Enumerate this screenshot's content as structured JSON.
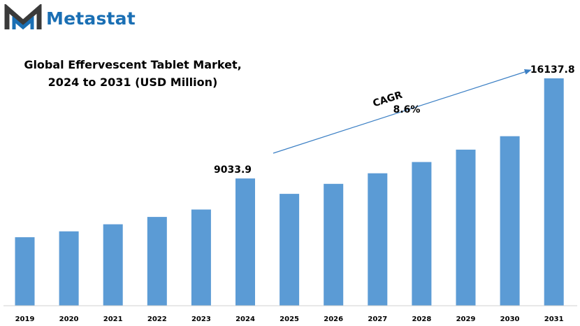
{
  "brand": {
    "name": "Metastat",
    "color": "#1a6fb4",
    "icon": "metastat-m-logo"
  },
  "chart_data": {
    "type": "bar",
    "title_line1": "Global Effervescent Tablet Market,",
    "title_line2": "2024 to 2031 (USD Million)",
    "categories": [
      "2019",
      "2020",
      "2021",
      "2022",
      "2023",
      "2024",
      "2025",
      "2026",
      "2027",
      "2028",
      "2029",
      "2030",
      "2031"
    ],
    "values": [
      4860,
      5280,
      5780,
      6300,
      6830,
      9033.9,
      7940,
      8650,
      9400,
      10200,
      11080,
      12030,
      16137.8
    ],
    "data_labels": [
      {
        "category": "2024",
        "text": "9033.9"
      },
      {
        "category": "2031",
        "text": "16137.8"
      }
    ],
    "annotation": {
      "label": "CAGR",
      "value": "8.6%",
      "from": "2024",
      "to": "2031"
    },
    "bar_color": "#5b9bd5",
    "arrow_color": "#3b7fc4",
    "ylim": [
      0,
      16137.8
    ],
    "grid": false,
    "legend": "none"
  }
}
